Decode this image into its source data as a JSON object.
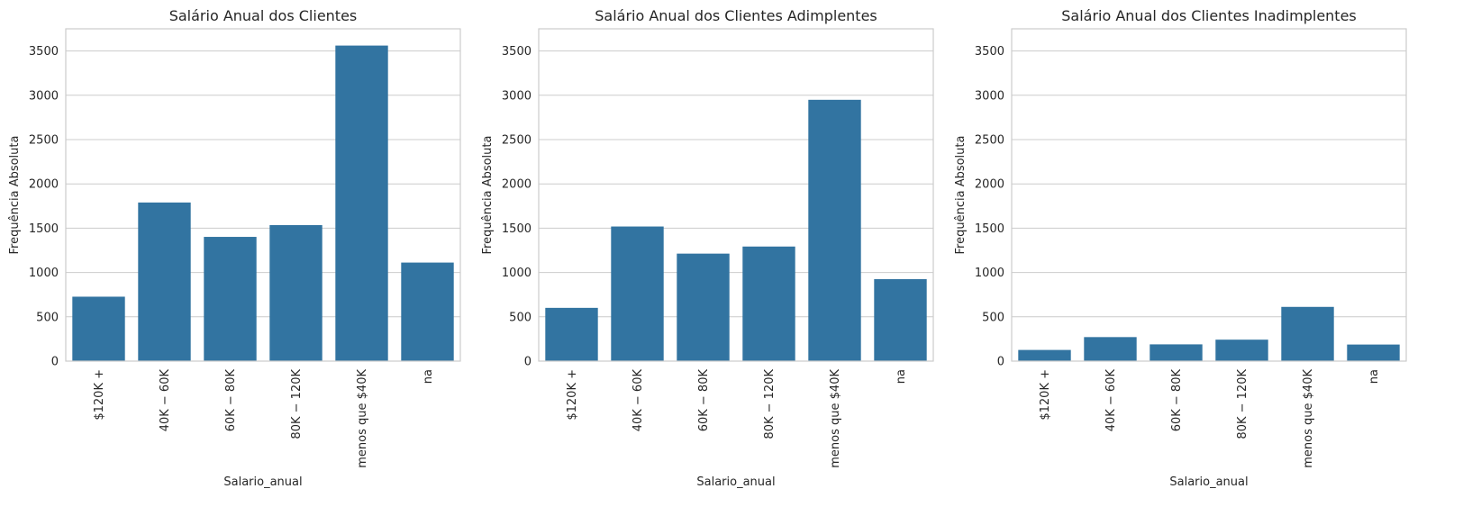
{
  "colors": {
    "bar": "#3274a1",
    "grid": "#cccccc",
    "spine": "#cccccc",
    "text": "#262626",
    "background": "#ffffff"
  },
  "chart_data": [
    {
      "type": "bar",
      "title": "Salário Anual dos Clientes",
      "xlabel": "Salario_anual",
      "ylabel": "Frequência Absoluta",
      "categories": [
        "$120K +",
        "40K − 60K",
        "60K − 80K",
        "80K − 120K",
        "menos que $40K",
        "na"
      ],
      "values": [
        727,
        1790,
        1402,
        1535,
        3561,
        1112
      ],
      "ylim": [
        0,
        3750
      ],
      "yticks": [
        0,
        500,
        1000,
        1500,
        2000,
        2500,
        3000,
        3500
      ],
      "grid": true,
      "legend": "none"
    },
    {
      "type": "bar",
      "title": "Salário Anual dos Clientes Adimplentes",
      "xlabel": "Salario_anual",
      "ylabel": "Frequência Absoluta",
      "categories": [
        "$120K +",
        "40K − 60K",
        "60K − 80K",
        "80K − 120K",
        "menos que $40K",
        "na"
      ],
      "values": [
        601,
        1519,
        1213,
        1293,
        2949,
        925
      ],
      "ylim": [
        0,
        3750
      ],
      "yticks": [
        0,
        500,
        1000,
        1500,
        2000,
        2500,
        3000,
        3500
      ],
      "grid": true,
      "legend": "none"
    },
    {
      "type": "bar",
      "title": "Salário Anual dos Clientes Inadimplentes",
      "xlabel": "Salario_anual",
      "ylabel": "Frequência Absoluta",
      "categories": [
        "$120K +",
        "40K − 60K",
        "60K − 80K",
        "80K − 120K",
        "menos que $40K",
        "na"
      ],
      "values": [
        126,
        271,
        189,
        242,
        612,
        187
      ],
      "ylim": [
        0,
        3750
      ],
      "yticks": [
        0,
        500,
        1000,
        1500,
        2000,
        2500,
        3000,
        3500
      ],
      "grid": true,
      "legend": "none"
    }
  ]
}
